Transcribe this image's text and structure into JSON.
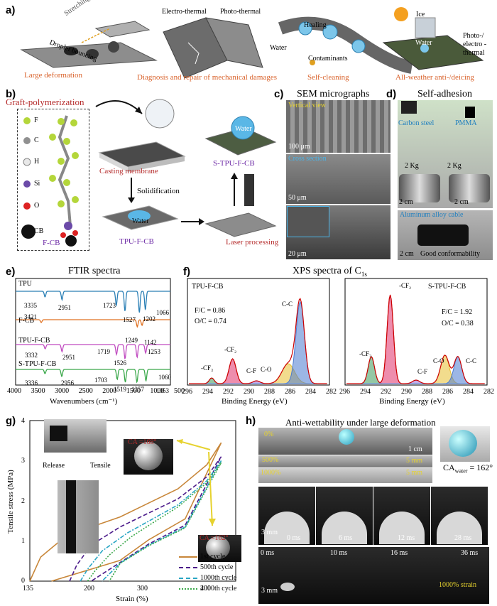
{
  "panels": {
    "a": "a)",
    "b": "b)",
    "c": "c)",
    "d": "d)",
    "e": "e)",
    "f": "f)",
    "g": "g)",
    "h": "h)"
  },
  "panel_a": {
    "stretching": "Stretching",
    "droplet_bouncing": "Droplet bouncing",
    "electro_thermal": "Electro-thermal",
    "photo_thermal": "Photo-thermal",
    "healing": "Healing",
    "water": "Water",
    "contaminants": "Contaminants",
    "ice": "Ice",
    "water2": "Water",
    "photo_electro_thermal": "Photo-/ electro -thermal",
    "captions": [
      "Large deformation",
      "Diagnosis and repair of mechanical damages",
      "Self-cleaning",
      "All-weather anti-/deicing"
    ]
  },
  "panel_b": {
    "graft": "Graft-polymerization",
    "legend": [
      "F",
      "C",
      "H",
      "Si",
      "O",
      "CB"
    ],
    "fcb": "F-CB",
    "casting": "Casting membrane",
    "solidification": "Solidification",
    "tpu_fcb": "TPU-F-CB",
    "laser": "Laser processing",
    "stpu_fcb": "S-TPU-F-CB",
    "water": "Water",
    "water2": "Water"
  },
  "panel_c": {
    "title": "SEM micrographs",
    "vertical": "Vertical view",
    "scale1": "100 μm",
    "cross": "Cross section",
    "scale2": "50 μm",
    "scale3": "20 μm"
  },
  "panel_d": {
    "title": "Self-adhesion",
    "carbon": "Carbon steel",
    "pmma": "PMMA",
    "kg1": "2 Kg",
    "kg2": "2 Kg",
    "cm1": "2 cm",
    "cm2": "2 cm",
    "aluminum": "Aluminum alloy cable",
    "cm3": "2 cm",
    "good": "Good conformability"
  },
  "panel_e": {
    "title": "FTIR spectra",
    "xlabel": "Wavenumbers (cm⁻¹)",
    "ticks": [
      "4000",
      "3500",
      "3000",
      "2500",
      "2000",
      "1500",
      "1000",
      "500"
    ],
    "samples": [
      "TPU",
      "F-CB",
      "TPU-F-CB",
      "S-TPU-F-CB"
    ],
    "peaks": [
      "3335",
      "2951",
      "1723",
      "1527",
      "1202",
      "1066",
      "3421",
      "1249",
      "1142",
      "3332",
      "2951",
      "1719",
      "1526",
      "1253",
      "1060",
      "3336",
      "2956",
      "1703",
      "1519",
      "1257",
      "1053"
    ]
  },
  "panel_f": {
    "title_main": "XPS spectra of C",
    "title_sub": "1s",
    "left": {
      "name": "TPU-F-CB",
      "fc": "F/C = 0.86",
      "oc": "O/C = 0.74",
      "labels": [
        "-CF₃",
        "-CF₂",
        "C-F",
        "C-O",
        "C-C"
      ]
    },
    "right": {
      "name": "S-TPU-F-CB",
      "fc": "F/C = 1.92",
      "oc": "O/C = 0.38",
      "labels": [
        "-CF₃",
        "-CF₂",
        "C-F",
        "C-O",
        "C-C"
      ]
    },
    "xlabel": "Binding Energy (eV)",
    "ticks": [
      "296",
      "294",
      "292",
      "290",
      "288",
      "286",
      "284",
      "282"
    ]
  },
  "panel_g": {
    "ylabel": "Tensile stress (MPa)",
    "xlabel": "Strain (%)",
    "yticks": [
      "0",
      "1",
      "2",
      "3",
      "4"
    ],
    "xticks": [
      "135",
      "200",
      "300",
      "400"
    ],
    "release": "Release",
    "tensile": "Tensile",
    "ca_top": "CA    =168°",
    "ca_top_sub": "water",
    "ca_bottom": "CA    =162°",
    "ca_bottom_sub": "water",
    "legend": [
      "1st cycle",
      "500th cycle",
      "1000th cycle",
      "2000th cycle"
    ],
    "colors": [
      "#c8873a",
      "#4b1a8a",
      "#2aa6c4",
      "#3aa84a"
    ]
  },
  "panel_h": {
    "title": "Anti-wettability under large deformation",
    "pct0": "0%",
    "pct500": "500%",
    "pct1000": "1000%",
    "cm": "1 cm",
    "mm1": "5 mm",
    "mm2": "5 mm",
    "ca": "CA",
    "ca_sub": "water",
    "ca_val": " = 162°",
    "times_top": [
      "0 ms",
      "6 ms",
      "12 ms",
      "28 ms"
    ],
    "scale_top": "3 mm",
    "times_bot": [
      "0 ms",
      "10 ms",
      "16 ms",
      "36 ms"
    ],
    "scale_bot": "3 mm",
    "strain": "1000% strain"
  },
  "chart_data": [
    {
      "type": "line",
      "title": "FTIR spectra",
      "xlabel": "Wavenumbers (cm⁻¹)",
      "xlim": [
        4000,
        500
      ],
      "series": [
        {
          "name": "TPU",
          "peaks": [
            3335,
            2951,
            1723,
            1527,
            1202,
            1066
          ]
        },
        {
          "name": "F-CB",
          "peaks": [
            3421,
            1249,
            1142
          ]
        },
        {
          "name": "TPU-F-CB",
          "peaks": [
            3332,
            2951,
            1719,
            1526,
            1253,
            1060
          ]
        },
        {
          "name": "S-TPU-F-CB",
          "peaks": [
            3336,
            2956,
            1703,
            1519,
            1257,
            1053
          ]
        }
      ]
    },
    {
      "type": "line",
      "title": "XPS spectra of C1s",
      "xlabel": "Binding Energy (eV)",
      "xlim": [
        296,
        282
      ],
      "series": [
        {
          "name": "TPU-F-CB",
          "F_C": 0.86,
          "O_C": 0.74
        },
        {
          "name": "S-TPU-F-CB",
          "F_C": 1.92,
          "O_C": 0.38
        }
      ]
    },
    {
      "type": "line",
      "xlabel": "Strain (%)",
      "ylabel": "Tensile stress (MPa)",
      "xlim": [
        135,
        420
      ],
      "ylim": [
        0,
        4
      ],
      "series": [
        {
          "name": "1st cycle",
          "x": [
            135,
            150,
            180,
            220,
            260,
            300,
            340,
            380,
            400
          ],
          "y": [
            0,
            0.6,
            1.05,
            1.35,
            1.6,
            1.95,
            2.3,
            2.9,
            3.45
          ]
        },
        {
          "name": "500th cycle",
          "x": [
            190,
            200,
            220,
            260,
            300,
            340,
            380,
            400
          ],
          "y": [
            0,
            0.4,
            0.9,
            1.35,
            1.7,
            2.05,
            2.6,
            3.1
          ]
        },
        {
          "name": "1000th cycle",
          "x": [
            205,
            215,
            235,
            270,
            300,
            340,
            380,
            400
          ],
          "y": [
            0,
            0.3,
            0.75,
            1.2,
            1.5,
            1.9,
            2.5,
            3.0
          ]
        },
        {
          "name": "2000th cycle",
          "x": [
            215,
            225,
            245,
            275,
            305,
            340,
            380,
            400
          ],
          "y": [
            0,
            0.25,
            0.65,
            1.1,
            1.45,
            1.85,
            2.45,
            2.95
          ]
        }
      ]
    }
  ]
}
